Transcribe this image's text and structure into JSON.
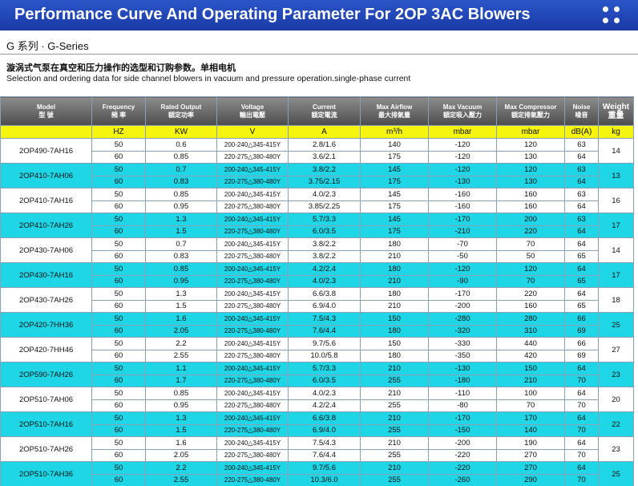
{
  "header": {
    "title": "Performance Curve And Operating Parameter For 2OP 3AC Blowers"
  },
  "series_title": "G 系列 · G-Series",
  "description": {
    "cn": "漩涡式气泵在真空和压力操作的选型和订购参数。单相电机",
    "en": "Selection and ordering data for side channel blowers in vacuum and pressure operation.single-phase current"
  },
  "colors": {
    "banner": "#1a3aa6",
    "unit_row": "#f5f50f",
    "row_accent": "#1fd6e6",
    "header_gray": "#6b6b6b"
  },
  "table": {
    "columns": [
      {
        "en": "Model",
        "cn": "型 號",
        "unit": ""
      },
      {
        "en": "Frequency",
        "cn": "頻 率",
        "unit": "HZ"
      },
      {
        "en": "Rated Output",
        "cn": "額定功率",
        "unit": "KW"
      },
      {
        "en": "Voltage",
        "cn": "輸出電壓",
        "unit": "V"
      },
      {
        "en": "Current",
        "cn": "額定電流",
        "unit": "A"
      },
      {
        "en": "Max Airflow",
        "cn": "最大排氣量",
        "unit": "m³/h"
      },
      {
        "en": "Max Vacuum",
        "cn": "額定吸入壓力",
        "unit": "mbar"
      },
      {
        "en": "Max Compressor",
        "cn": "額定排氣壓力",
        "unit": "mbar"
      },
      {
        "en": "Noise",
        "cn": "噪音",
        "unit": "dB(A)"
      },
      {
        "en": "Weight",
        "cn": "重量",
        "unit": "kg"
      }
    ],
    "models": [
      {
        "model": "2OP490-7AH16",
        "weight": "14",
        "rows": [
          {
            "hz": "50",
            "kw": "0.6",
            "v": "200-240△345-415Y",
            "a": "2.8/1.6",
            "flow": "140",
            "vac": "-120",
            "comp": "120",
            "noise": "63"
          },
          {
            "hz": "60",
            "kw": "0.85",
            "v": "220-275△380-480Y",
            "a": "3.6/2.1",
            "flow": "175",
            "vac": "-120",
            "comp": "130",
            "noise": "64"
          }
        ]
      },
      {
        "model": "2OP410-7AH06",
        "weight": "13",
        "rows": [
          {
            "hz": "50",
            "kw": "0.7",
            "v": "200-240△345-415Y",
            "a": "3.8/2.2",
            "flow": "145",
            "vac": "-120",
            "comp": "120",
            "noise": "63"
          },
          {
            "hz": "60",
            "kw": "0.83",
            "v": "220-275△380-480Y",
            "a": "3.75/2.15",
            "flow": "175",
            "vac": "-130",
            "comp": "130",
            "noise": "64"
          }
        ]
      },
      {
        "model": "2OP410-7AH16",
        "weight": "16",
        "rows": [
          {
            "hz": "50",
            "kw": "0.85",
            "v": "200-240△345-415Y",
            "a": "4.0/2.3",
            "flow": "145",
            "vac": "-160",
            "comp": "160",
            "noise": "63"
          },
          {
            "hz": "60",
            "kw": "0.95",
            "v": "220-275△380-480Y",
            "a": "3.85/2.25",
            "flow": "175",
            "vac": "-160",
            "comp": "160",
            "noise": "64"
          }
        ]
      },
      {
        "model": "2OP410-7AH26",
        "weight": "17",
        "rows": [
          {
            "hz": "50",
            "kw": "1.3",
            "v": "200-240△345-415Y",
            "a": "5.7/3.3",
            "flow": "145",
            "vac": "-170",
            "comp": "200",
            "noise": "63"
          },
          {
            "hz": "60",
            "kw": "1.5",
            "v": "220-275△380-480Y",
            "a": "6.0/3.5",
            "flow": "175",
            "vac": "-210",
            "comp": "220",
            "noise": "64"
          }
        ]
      },
      {
        "model": "2OP430-7AH06",
        "weight": "14",
        "rows": [
          {
            "hz": "50",
            "kw": "0.7",
            "v": "200-240△345-415Y",
            "a": "3.8/2.2",
            "flow": "180",
            "vac": "-70",
            "comp": "70",
            "noise": "64"
          },
          {
            "hz": "60",
            "kw": "0.83",
            "v": "220-275△380-480Y",
            "a": "3.8/2.2",
            "flow": "210",
            "vac": "-50",
            "comp": "50",
            "noise": "65"
          }
        ]
      },
      {
        "model": "2OP430-7AH16",
        "weight": "17",
        "rows": [
          {
            "hz": "50",
            "kw": "0.85",
            "v": "200-240△345-415Y",
            "a": "4.2/2.4",
            "flow": "180",
            "vac": "-120",
            "comp": "120",
            "noise": "64"
          },
          {
            "hz": "60",
            "kw": "0.95",
            "v": "220-275△380-480Y",
            "a": "4.0/2.3",
            "flow": "210",
            "vac": "-90",
            "comp": "70",
            "noise": "65"
          }
        ]
      },
      {
        "model": "2OP430-7AH26",
        "weight": "18",
        "rows": [
          {
            "hz": "50",
            "kw": "1.3",
            "v": "200-240△345-415Y",
            "a": "6.6/3.8",
            "flow": "180",
            "vac": "-170",
            "comp": "220",
            "noise": "64"
          },
          {
            "hz": "60",
            "kw": "1.5",
            "v": "220-275△380-480Y",
            "a": "6.9/4.0",
            "flow": "210",
            "vac": "-200",
            "comp": "160",
            "noise": "65"
          }
        ]
      },
      {
        "model": "2OP420-7HH36",
        "weight": "25",
        "rows": [
          {
            "hz": "50",
            "kw": "1.6",
            "v": "200-240△345-415Y",
            "a": "7.5/4.3",
            "flow": "150",
            "vac": "-280",
            "comp": "280",
            "noise": "66"
          },
          {
            "hz": "60",
            "kw": "2.05",
            "v": "220-275△380-480Y",
            "a": "7.6/4.4",
            "flow": "180",
            "vac": "-320",
            "comp": "310",
            "noise": "69"
          }
        ]
      },
      {
        "model": "2OP420-7HH46",
        "weight": "27",
        "rows": [
          {
            "hz": "50",
            "kw": "2.2",
            "v": "200-240△345-415Y",
            "a": "9.7/5.6",
            "flow": "150",
            "vac": "-330",
            "comp": "440",
            "noise": "66"
          },
          {
            "hz": "60",
            "kw": "2.55",
            "v": "220-275△380-480Y",
            "a": "10.0/5.8",
            "flow": "180",
            "vac": "-350",
            "comp": "420",
            "noise": "69"
          }
        ]
      },
      {
        "model": "2OP590-7AH26",
        "weight": "23",
        "rows": [
          {
            "hz": "50",
            "kw": "1.1",
            "v": "200-240△345-415Y",
            "a": "5.7/3.3",
            "flow": "210",
            "vac": "-130",
            "comp": "150",
            "noise": "64"
          },
          {
            "hz": "60",
            "kw": "1.7",
            "v": "220-275△380-480Y",
            "a": "6.0/3.5",
            "flow": "255",
            "vac": "-180",
            "comp": "210",
            "noise": "70"
          }
        ]
      },
      {
        "model": "2OP510-7AH06",
        "weight": "20",
        "rows": [
          {
            "hz": "50",
            "kw": "0.85",
            "v": "200-240△345-415Y",
            "a": "4.0/2.3",
            "flow": "210",
            "vac": "-110",
            "comp": "100",
            "noise": "64"
          },
          {
            "hz": "60",
            "kw": "0.95",
            "v": "220-275△380-480Y",
            "a": "4.2/2.4",
            "flow": "255",
            "vac": "-80",
            "comp": "70",
            "noise": "70"
          }
        ]
      },
      {
        "model": "2OP510-7AH16",
        "weight": "22",
        "rows": [
          {
            "hz": "50",
            "kw": "1.3",
            "v": "200-240△345-415Y",
            "a": "6.6/3.8",
            "flow": "210",
            "vac": "-170",
            "comp": "170",
            "noise": "64"
          },
          {
            "hz": "60",
            "kw": "1.5",
            "v": "220-275△380-480Y",
            "a": "6.9/4.0",
            "flow": "255",
            "vac": "-150",
            "comp": "140",
            "noise": "70"
          }
        ]
      },
      {
        "model": "2OP510-7AH26",
        "weight": "23",
        "rows": [
          {
            "hz": "50",
            "kw": "1.6",
            "v": "200-240△345-415Y",
            "a": "7.5/4.3",
            "flow": "210",
            "vac": "-200",
            "comp": "190",
            "noise": "64"
          },
          {
            "hz": "60",
            "kw": "2.05",
            "v": "220-275△380-480Y",
            "a": "7.6/4.4",
            "flow": "255",
            "vac": "-220",
            "comp": "270",
            "noise": "70"
          }
        ]
      },
      {
        "model": "2OP510-7AH36",
        "weight": "25",
        "rows": [
          {
            "hz": "50",
            "kw": "2.2",
            "v": "200-240△345-415Y",
            "a": "9.7/5.6",
            "flow": "210",
            "vac": "-220",
            "comp": "270",
            "noise": "64"
          },
          {
            "hz": "60",
            "kw": "2.55",
            "v": "220-275△380-480Y",
            "a": "10.3/6.0",
            "flow": "255",
            "vac": "-260",
            "comp": "290",
            "noise": "70"
          }
        ]
      }
    ]
  }
}
